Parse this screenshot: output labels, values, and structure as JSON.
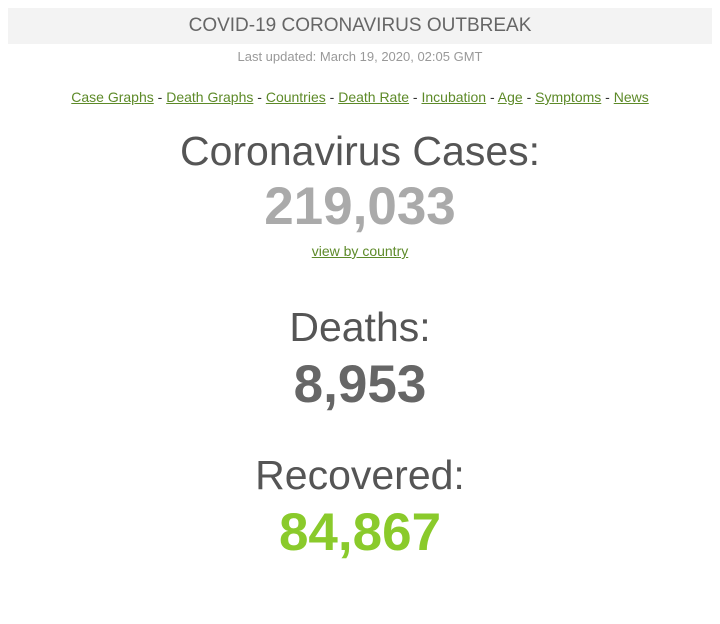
{
  "header": {
    "title": "COVID-19 CORONAVIRUS OUTBREAK",
    "last_updated": "Last updated: March 19, 2020, 02:05 GMT"
  },
  "nav": {
    "separator": " - ",
    "links": [
      "Case Graphs",
      "Death Graphs",
      "Countries",
      "Death Rate",
      "Incubation",
      "Age",
      "Symptoms",
      "News"
    ],
    "link_color": "#5d8a28"
  },
  "cases": {
    "label": "Coronavirus Cases:",
    "value": "219,033",
    "link": "view by country",
    "color": "#aaaaaa"
  },
  "deaths": {
    "label": "Deaths:",
    "value": "8,953",
    "color": "#666666"
  },
  "recovered": {
    "label": "Recovered:",
    "value": "84,867",
    "color": "#8aca2b"
  }
}
